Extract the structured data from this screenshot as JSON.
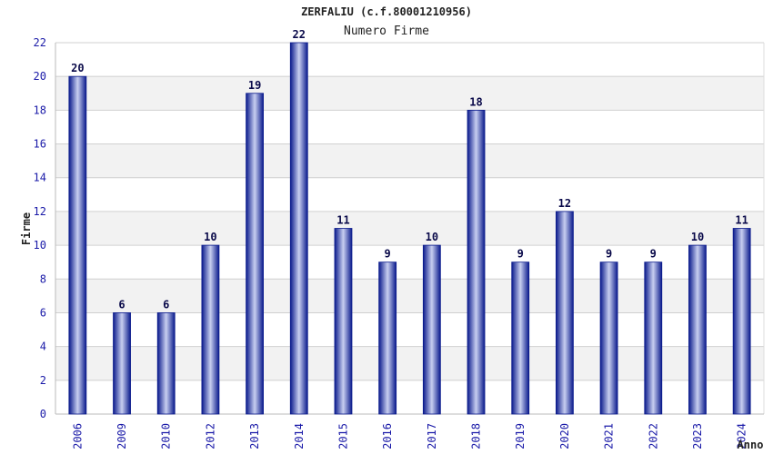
{
  "chart_data": {
    "type": "bar",
    "title": "ZERFALIU (c.f.80001210956)",
    "subtitle": "Numero Firme",
    "xlabel": "Anno",
    "ylabel": "Firme",
    "categories": [
      "2006",
      "2009",
      "2010",
      "2012",
      "2013",
      "2014",
      "2015",
      "2016",
      "2017",
      "2018",
      "2019",
      "2020",
      "2021",
      "2022",
      "2023",
      "2024"
    ],
    "values": [
      20,
      6,
      6,
      10,
      19,
      22,
      11,
      9,
      10,
      18,
      9,
      12,
      9,
      9,
      10,
      11
    ],
    "ylim": [
      0,
      22
    ],
    "yticks": [
      0,
      2,
      4,
      6,
      8,
      10,
      12,
      14,
      16,
      18,
      20,
      22
    ],
    "grid": true,
    "legend": "none",
    "colors": {
      "bar_dark": "#0a1a8c",
      "bar_light": "#c8cff0",
      "band": "#f2f2f2",
      "grid": "#d0d0d0",
      "tick_text": "#1a1aa8",
      "value_text": "#0a0a4a"
    }
  }
}
